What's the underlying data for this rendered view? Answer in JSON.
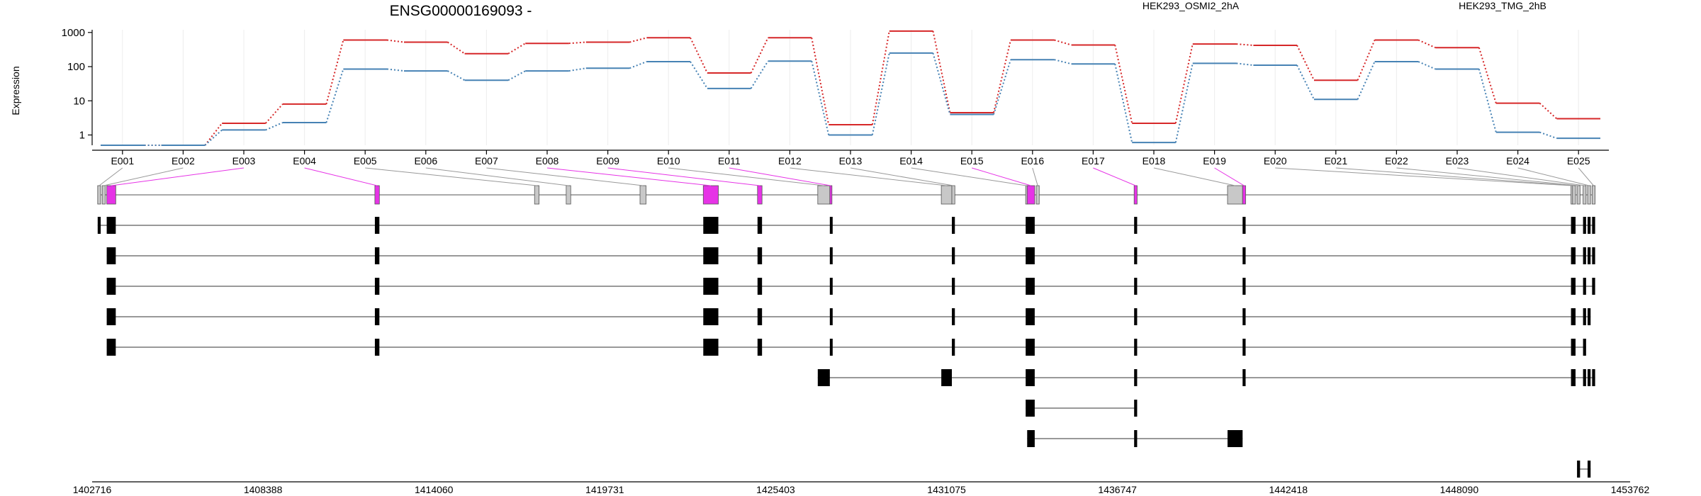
{
  "title": "ENSG00000169093 -",
  "chart_data": {
    "type": "line",
    "title": "ENSG00000169093 -",
    "ylabel": "Expression",
    "yscale": "log",
    "ylim": [
      0.5,
      1200
    ],
    "yticks": [
      "1",
      "10",
      "100",
      "1000"
    ],
    "grid": true,
    "legend_position": "top",
    "exons": [
      "E001",
      "E002",
      "E003",
      "E004",
      "E005",
      "E006",
      "E007",
      "E008",
      "E009",
      "E010",
      "E011",
      "E012",
      "E013",
      "E014",
      "E015",
      "E016",
      "E017",
      "E018",
      "E019",
      "E020",
      "E021",
      "E022",
      "E023",
      "E024",
      "E025"
    ],
    "series": [
      {
        "name": "HEK293_OSMI2_2hA",
        "color": "#d62728",
        "values": [
          0.5,
          0.5,
          2.2,
          8,
          600,
          520,
          240,
          480,
          520,
          700,
          65,
          700,
          2,
          1100,
          4.5,
          600,
          430,
          2.2,
          460,
          420,
          40,
          600,
          360,
          8.5,
          3
        ]
      },
      {
        "name": "HEK293_TMG_2hB",
        "color": "#4682b4",
        "values": [
          0.5,
          0.5,
          1.4,
          2.3,
          85,
          75,
          40,
          75,
          90,
          140,
          23,
          145,
          1,
          250,
          4,
          160,
          120,
          0.6,
          125,
          110,
          11,
          140,
          85,
          1.2,
          0.8
        ]
      }
    ],
    "genome_axis_ticks": [
      "1402716",
      "1408388",
      "1414060",
      "1419731",
      "1425403",
      "1431075",
      "1436747",
      "1442418",
      "1448090",
      "1453762"
    ]
  },
  "colors": {
    "highlight_exon": "#e633e6",
    "other_exon": "#c8c8c8",
    "transcript_exon": "#000000"
  }
}
